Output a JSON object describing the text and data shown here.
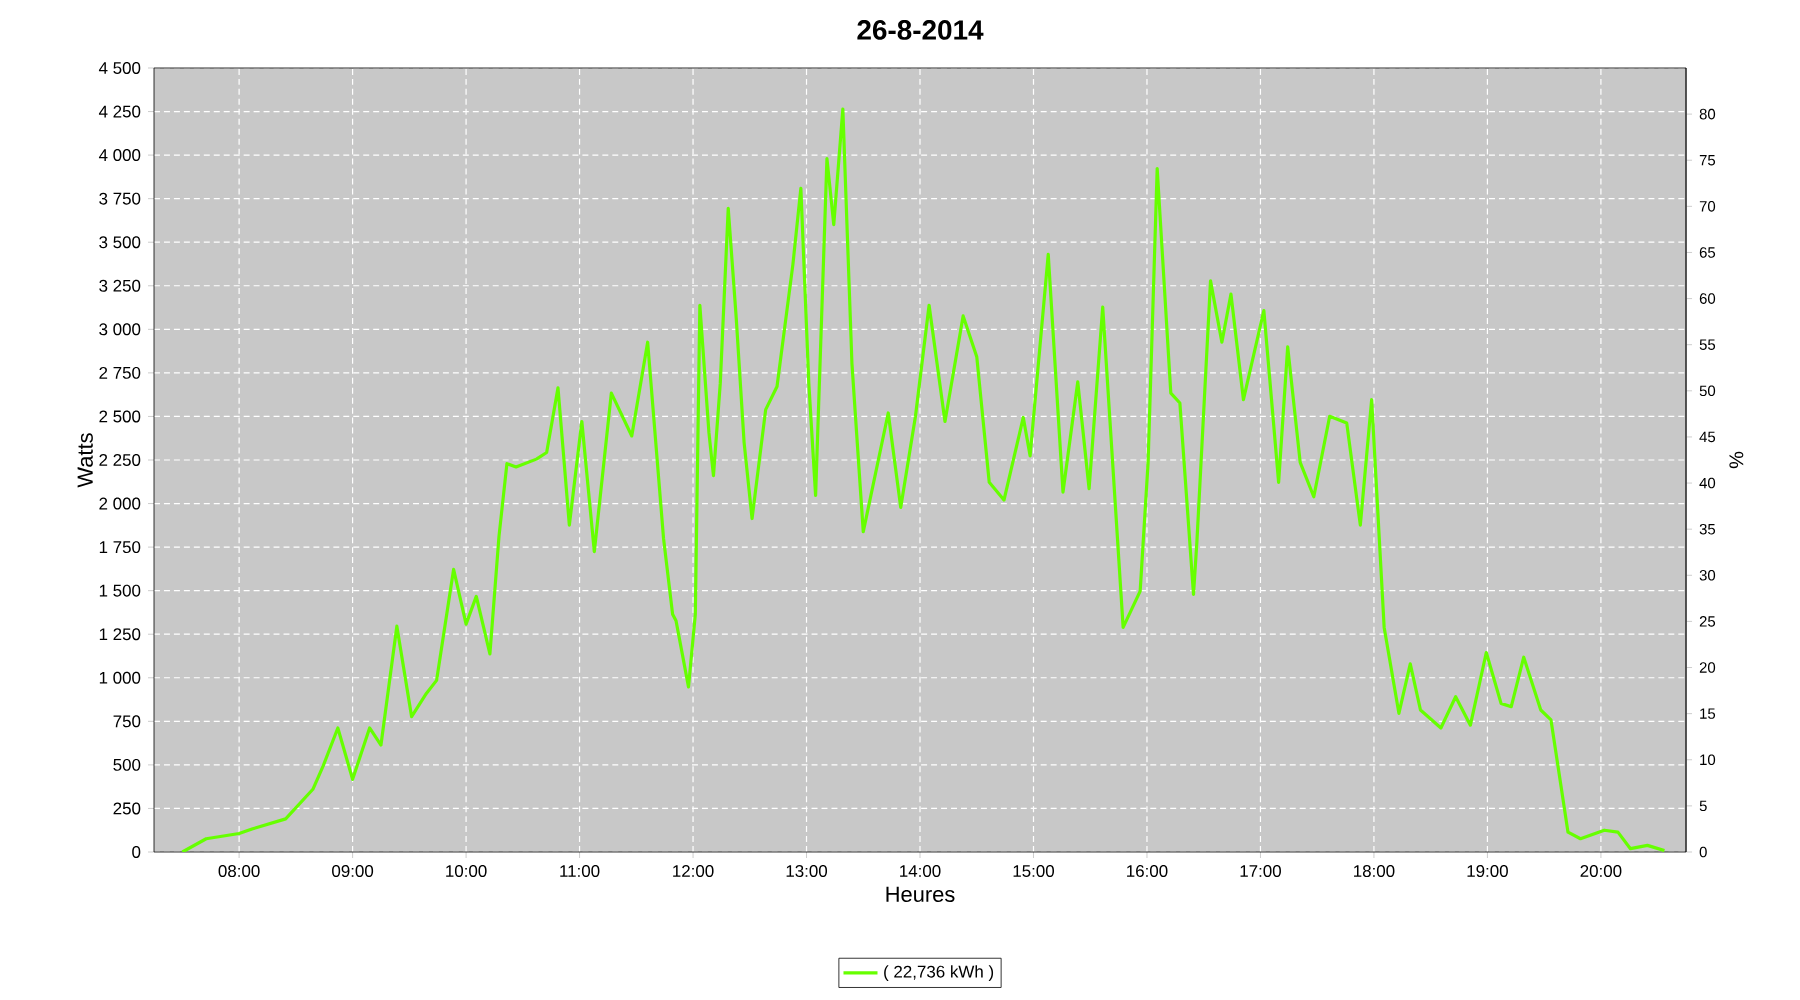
{
  "chart_data": {
    "type": "line",
    "title": "26-8-2014",
    "xlabel": "Heures",
    "ylabel": "Watts",
    "y2label": "%",
    "xlim": [
      7.25,
      20.75
    ],
    "ylim": [
      0,
      4500
    ],
    "y2lim": [
      0,
      85
    ],
    "xticks": [
      {
        "value": 8,
        "label": "08:00"
      },
      {
        "value": 9,
        "label": "09:00"
      },
      {
        "value": 10,
        "label": "10:00"
      },
      {
        "value": 11,
        "label": "11:00"
      },
      {
        "value": 12,
        "label": "12:00"
      },
      {
        "value": 13,
        "label": "13:00"
      },
      {
        "value": 14,
        "label": "14:00"
      },
      {
        "value": 15,
        "label": "15:00"
      },
      {
        "value": 16,
        "label": "16:00"
      },
      {
        "value": 17,
        "label": "17:00"
      },
      {
        "value": 18,
        "label": "18:00"
      },
      {
        "value": 19,
        "label": "19:00"
      },
      {
        "value": 20,
        "label": "20:00"
      }
    ],
    "yticks": [
      0,
      250,
      500,
      750,
      {
        "value": 1000,
        "label": "1 000"
      },
      {
        "value": 1250,
        "label": "1 250"
      },
      {
        "value": 1500,
        "label": "1 500"
      },
      {
        "value": 1750,
        "label": "1 750"
      },
      {
        "value": 2000,
        "label": "2 000"
      },
      {
        "value": 2250,
        "label": "2 250"
      },
      {
        "value": 2500,
        "label": "2 500"
      },
      {
        "value": 2750,
        "label": "2 750"
      },
      {
        "value": 3000,
        "label": "3 000"
      },
      {
        "value": 3250,
        "label": "3 250"
      },
      {
        "value": 3500,
        "label": "3 500"
      },
      {
        "value": 3750,
        "label": "3 750"
      },
      {
        "value": 4000,
        "label": "4 000"
      },
      {
        "value": 4250,
        "label": "4 250"
      },
      {
        "value": 4500,
        "label": "4 500"
      }
    ],
    "y2ticks": [
      0,
      5,
      10,
      15,
      20,
      25,
      30,
      35,
      40,
      45,
      50,
      55,
      60,
      65,
      70,
      75,
      80
    ],
    "grid": true,
    "legend": "bottom",
    "series": [
      {
        "name": "( 22,736 kWh )",
        "color": "#66ff00",
        "x": [
          7.5,
          7.71,
          8.0,
          8.12,
          8.41,
          8.65,
          8.74,
          8.87,
          9.0,
          9.15,
          9.25,
          9.39,
          9.52,
          9.65,
          9.74,
          9.89,
          10.0,
          10.09,
          10.21,
          10.29,
          10.36,
          10.44,
          10.62,
          10.71,
          10.81,
          10.91,
          11.02,
          11.13,
          11.28,
          11.46,
          11.6,
          11.74,
          11.82,
          11.85,
          11.96,
          12.02,
          12.06,
          12.14,
          12.18,
          12.24,
          12.31,
          12.38,
          12.45,
          12.52,
          12.64,
          12.74,
          12.88,
          12.95,
          13.02,
          13.08,
          13.18,
          13.24,
          13.32,
          13.4,
          13.5,
          13.72,
          13.83,
          13.96,
          14.08,
          14.22,
          14.38,
          14.5,
          14.61,
          14.74,
          14.91,
          14.97,
          15.13,
          15.26,
          15.39,
          15.49,
          15.61,
          15.79,
          15.94,
          16.01,
          16.09,
          16.21,
          16.29,
          16.41,
          16.44,
          16.56,
          16.66,
          16.74,
          16.85,
          17.03,
          17.16,
          17.24,
          17.35,
          17.47,
          17.61,
          17.76,
          17.88,
          17.98,
          18.09,
          18.22,
          18.32,
          18.41,
          18.59,
          18.72,
          18.85,
          18.99,
          19.12,
          19.21,
          19.32,
          19.47,
          19.56,
          19.71,
          19.82,
          20.03,
          20.15,
          20.26,
          20.41,
          20.56
        ],
        "values": [
          0,
          76,
          106,
          133,
          190,
          360,
          493,
          712,
          417,
          712,
          614,
          1296,
          777,
          910,
          985,
          1622,
          1308,
          1467,
          1137,
          1812,
          2229,
          2210,
          2255,
          2293,
          2664,
          1876,
          2471,
          1724,
          2634,
          2388,
          2926,
          1800,
          1364,
          1327,
          948,
          1364,
          3138,
          2407,
          2160,
          2691,
          3695,
          3070,
          2350,
          1914,
          2539,
          2672,
          3373,
          3809,
          2691,
          2047,
          3980,
          3601,
          4264,
          2805,
          1838,
          2520,
          1978,
          2501,
          3138,
          2471,
          3077,
          2843,
          2122,
          2020,
          2494,
          2274,
          3430,
          2066,
          2698,
          2085,
          3127,
          1289,
          1497,
          2236,
          3923,
          2634,
          2577,
          1478,
          1781,
          3278,
          2926,
          3202,
          2596,
          3108,
          2122,
          2899,
          2236,
          2039,
          2501,
          2463,
          1876,
          2596,
          1289,
          796,
          1080,
          815,
          712,
          891,
          728,
          1145,
          853,
          834,
          1118,
          815,
          758,
          114,
          76,
          125,
          114,
          19,
          38,
          8
        ]
      }
    ]
  }
}
